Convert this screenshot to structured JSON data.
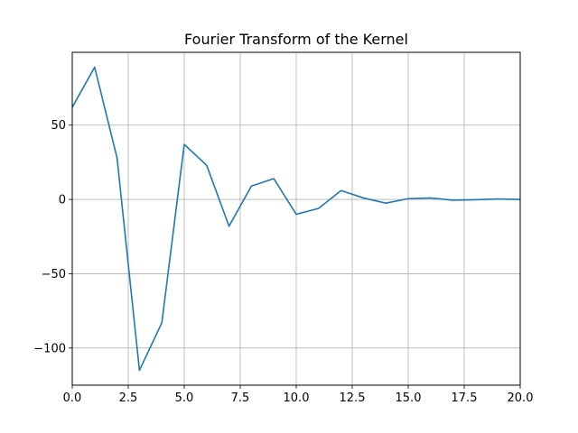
{
  "chart_data": {
    "type": "line",
    "title": "Fourier Transform of the Kernel",
    "xlabel": "",
    "ylabel": "",
    "xlim": [
      0,
      20
    ],
    "ylim": [
      -125,
      99
    ],
    "grid": true,
    "legend": false,
    "x_ticks": [
      0,
      2.5,
      5,
      7.5,
      10,
      12.5,
      15,
      17.5,
      20
    ],
    "x_tick_labels": [
      "0.0",
      "2.5",
      "5.0",
      "7.5",
      "10.0",
      "12.5",
      "15.0",
      "17.5",
      "20.0"
    ],
    "y_ticks": [
      -100,
      -50,
      0,
      50
    ],
    "y_tick_labels": [
      "−100",
      "−50",
      "0",
      "50"
    ],
    "series": [
      {
        "color": "#1f77b4",
        "x": [
          0,
          1,
          2,
          3,
          4,
          5,
          6,
          7,
          8,
          9,
          10,
          11,
          12,
          13,
          14,
          15,
          16,
          17,
          18,
          19,
          20
        ],
        "y": [
          62,
          89,
          28,
          -115,
          -83,
          37,
          23,
          -18,
          9,
          14,
          -10,
          -6,
          6,
          1,
          -2.5,
          0.5,
          1,
          -0.5,
          -0.2,
          0.3,
          0
        ]
      }
    ]
  }
}
